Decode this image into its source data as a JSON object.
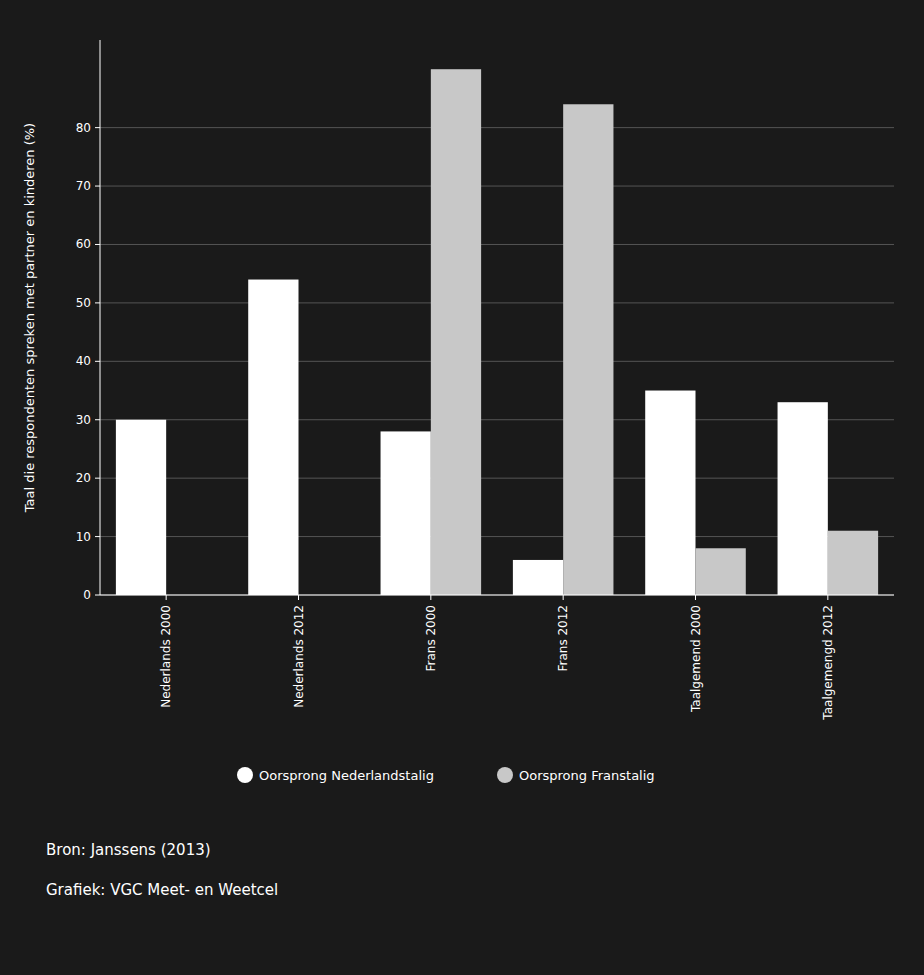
{
  "chart_data": {
    "type": "bar",
    "categories": [
      "Nederlands 2000",
      "Nederlands 2012",
      "Frans 2000",
      "Frans 2012",
      "Taalgemend 2000",
      "Taalgemengd 2012"
    ],
    "series": [
      {
        "name": "Oorsprong Nederlandstalig",
        "color": "#ffffff",
        "values": [
          30,
          54,
          28,
          6,
          35,
          33
        ]
      },
      {
        "name": "Oorsprong Franstalig",
        "color": "#c8c8c8",
        "values": [
          0,
          0,
          90,
          84,
          8,
          11
        ]
      }
    ],
    "ylabel": "Taal die respondenten spreken met partner en kinderen (%)",
    "ylim": [
      0,
      95
    ],
    "yticks": [
      0,
      10,
      20,
      30,
      40,
      50,
      60,
      70,
      80
    ],
    "grid": true,
    "legend": "bottom",
    "annotations": [
      "Bron: Janssens (2013)",
      "Grafiek: VGC Meet- en Weetcel"
    ]
  }
}
